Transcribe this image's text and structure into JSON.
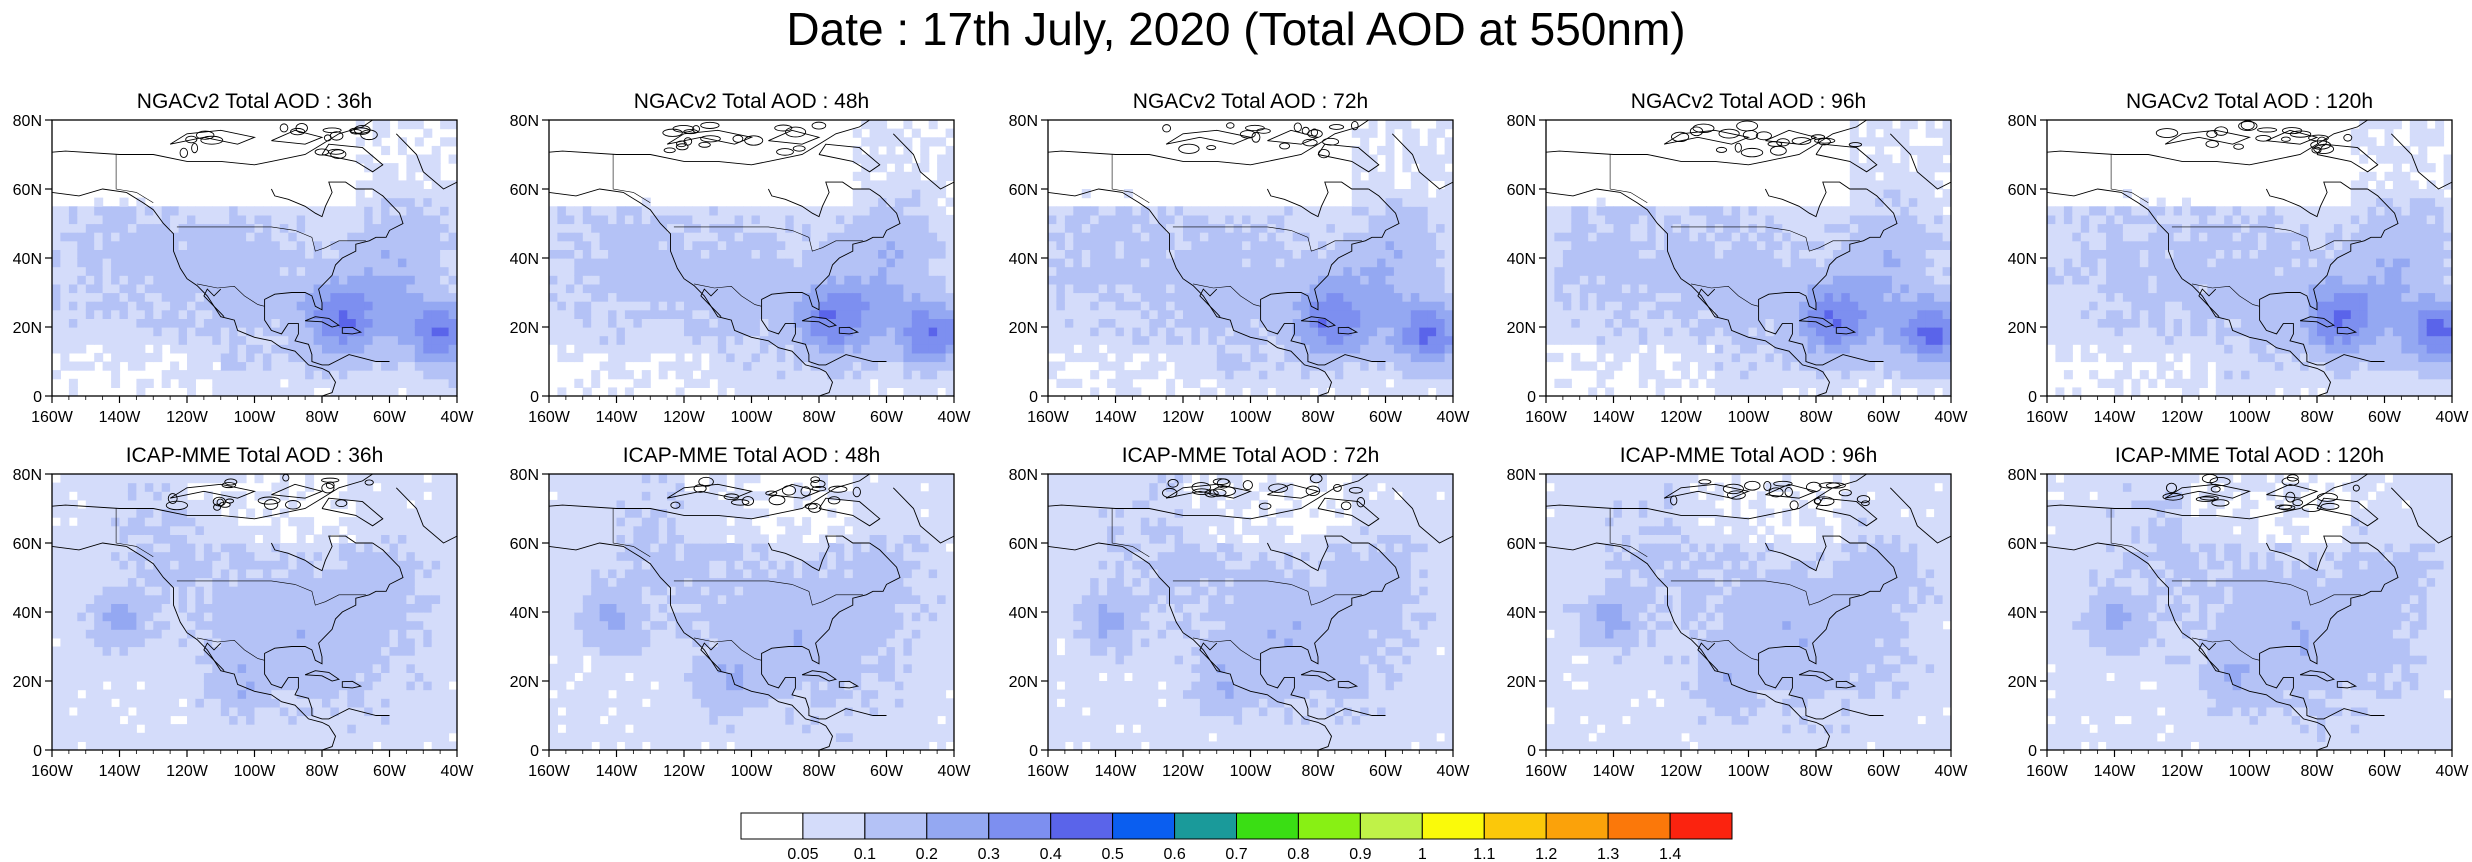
{
  "title": "Date : 17th July, 2020 (Total AOD at 550nm)",
  "x_tick_labels": [
    "160W",
    "140W",
    "120W",
    "100W",
    "80W",
    "60W",
    "40W"
  ],
  "y_tick_labels": [
    "0",
    "20N",
    "40N",
    "60N",
    "80N"
  ],
  "colors": {
    "land_outline": "#000000",
    "shades": [
      "#ffffff",
      "#d4dcfa",
      "#b4c2f6",
      "#94a8f2",
      "#7d8ff0",
      "#5a64ea",
      "#0a5ef0",
      "#1a9a9a",
      "#3ade14",
      "#88f014",
      "#c0f248",
      "#fafa0a",
      "#fbc80a",
      "#fba20a",
      "#fb780a",
      "#fb230f"
    ]
  },
  "colorbar": {
    "labels": [
      "0.05",
      "0.1",
      "0.2",
      "0.3",
      "0.4",
      "0.5",
      "0.6",
      "0.7",
      "0.8",
      "0.9",
      "1",
      "1.1",
      "1.2",
      "1.3",
      "1.4"
    ]
  },
  "panels": [
    {
      "title": "NGACv2 Total AOD : 36h",
      "model": "NGACv2",
      "lead": "36h"
    },
    {
      "title": "NGACv2 Total AOD : 48h",
      "model": "NGACv2",
      "lead": "48h"
    },
    {
      "title": "NGACv2 Total AOD : 72h",
      "model": "NGACv2",
      "lead": "72h"
    },
    {
      "title": "NGACv2 Total AOD : 96h",
      "model": "NGACv2",
      "lead": "96h"
    },
    {
      "title": "NGACv2 Total AOD : 120h",
      "model": "NGACv2",
      "lead": "120h"
    },
    {
      "title": "ICAP-MME Total AOD : 36h",
      "model": "ICAP-MME",
      "lead": "36h"
    },
    {
      "title": "ICAP-MME Total AOD : 48h",
      "model": "ICAP-MME",
      "lead": "48h"
    },
    {
      "title": "ICAP-MME Total AOD : 72h",
      "model": "ICAP-MME",
      "lead": "72h"
    },
    {
      "title": "ICAP-MME Total AOD : 96h",
      "model": "ICAP-MME",
      "lead": "96h"
    },
    {
      "title": "ICAP-MME Total AOD : 120h",
      "model": "ICAP-MME",
      "lead": "120h"
    }
  ],
  "map_extent": {
    "lon": [
      -160,
      -40
    ],
    "lat": [
      0,
      80
    ]
  }
}
